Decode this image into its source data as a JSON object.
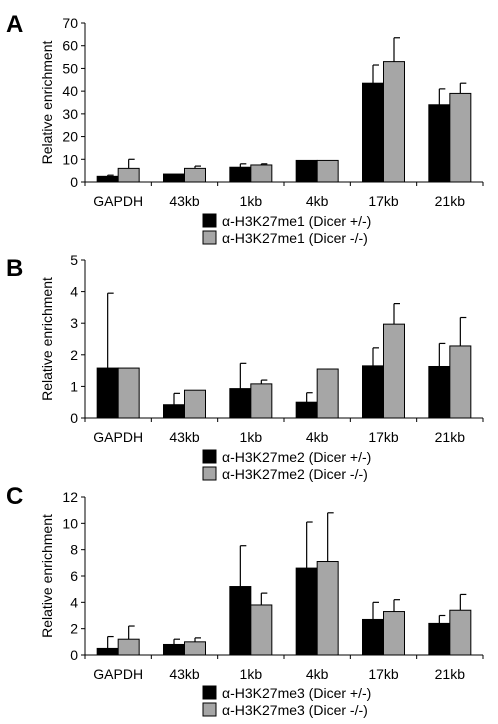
{
  "colors": {
    "het": "#000000",
    "ko": "#a6a6a6",
    "axis": "#000000"
  },
  "chart_data": [
    {
      "panel": "A",
      "type": "bar",
      "ylabel": "Relative enrichment",
      "ylim": [
        0,
        70
      ],
      "yticks": [
        "0",
        "10",
        "20",
        "30",
        "40",
        "50",
        "60",
        "70"
      ],
      "categories": [
        "GAPDH",
        "43kb",
        "1kb",
        "4kb",
        "17kb",
        "21kb"
      ],
      "series": [
        {
          "name": "α-H3K27me1 (Dicer +/-)",
          "values": [
            2.5,
            3.5,
            6.5,
            9.5,
            43.5,
            34
          ],
          "errors": [
            0.5,
            0,
            1.5,
            0,
            8,
            7
          ]
        },
        {
          "name": "α-H3K27me1 (Dicer -/-)",
          "values": [
            6,
            6,
            7.5,
            9.5,
            53,
            39
          ],
          "errors": [
            4,
            1,
            0.5,
            0,
            10.5,
            4.5
          ]
        }
      ]
    },
    {
      "panel": "B",
      "type": "bar",
      "ylabel": "Relative enrichment",
      "ylim": [
        0,
        5
      ],
      "yticks": [
        "0",
        "1",
        "2",
        "3",
        "4",
        "5"
      ],
      "categories": [
        "GAPDH",
        "43kb",
        "1kb",
        "4kb",
        "17kb",
        "21kb"
      ],
      "series": [
        {
          "name": "α-H3K27me2 (Dicer +/-)",
          "values": [
            1.58,
            0.42,
            0.93,
            0.5,
            1.65,
            1.63
          ],
          "errors": [
            2.37,
            0.36,
            0.8,
            0.3,
            0.57,
            0.73
          ]
        },
        {
          "name": "α-H3K27me2 (Dicer -/-)",
          "values": [
            1.58,
            0.88,
            1.08,
            1.55,
            2.97,
            2.28
          ],
          "errors": [
            0,
            0,
            0.12,
            0,
            0.65,
            0.9
          ]
        }
      ]
    },
    {
      "panel": "C",
      "type": "bar",
      "ylabel": "Relative enrichment",
      "ylim": [
        0,
        12
      ],
      "yticks": [
        "0",
        "2",
        "4",
        "6",
        "8",
        "10",
        "12"
      ],
      "categories": [
        "GAPDH",
        "43kb",
        "1kb",
        "4kb",
        "17kb",
        "21kb"
      ],
      "series": [
        {
          "name": "α-H3K27me3 (Dicer +/-)",
          "values": [
            0.5,
            0.8,
            5.2,
            6.6,
            2.7,
            2.4
          ],
          "errors": [
            0.9,
            0.4,
            3.1,
            3.5,
            1.3,
            0.6
          ]
        },
        {
          "name": "α-H3K27me3 (Dicer -/-)",
          "values": [
            1.2,
            1.0,
            3.8,
            7.1,
            3.3,
            3.4
          ],
          "errors": [
            1.0,
            0.3,
            0.9,
            3.7,
            0.9,
            1.2
          ]
        }
      ]
    }
  ]
}
